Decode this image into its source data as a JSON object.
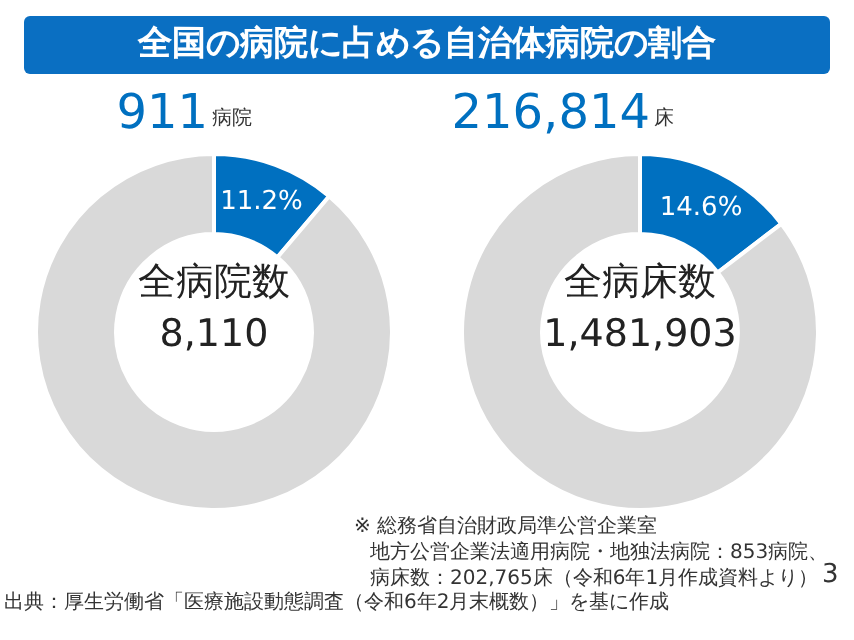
{
  "chart_data": [
    {
      "type": "donut",
      "title": "全国の病院に占める自治体病院の割合",
      "categories": [
        null,
        null
      ],
      "values": [
        11.2,
        88.8
      ],
      "colors": [
        "#0070c0",
        "#d9d9d9"
      ],
      "value_labels": [
        "11.2%",
        null
      ],
      "annotations": [
        "911",
        "病院",
        "全病院数",
        "8,110",
        "出典：厚生労働省「医療施設動態調査（令和6年2月末概数）」を基に作成"
      ]
    },
    {
      "type": "donut",
      "categories": [
        null,
        null
      ],
      "values": [
        14.6,
        85.4
      ],
      "colors": [
        "#0070c0",
        "#d9d9d9"
      ],
      "value_labels": [
        "14.6%",
        null
      ],
      "annotations": [
        "216,814",
        "床",
        "全病床数",
        "1,481,903",
        "※ 総務省自治財政局準公営企業室",
        "地方公営企業法適用病院・地独法病院：853病院、",
        "病床数：202,765床（令和6年1月作成資料より）",
        "3"
      ]
    }
  ]
}
